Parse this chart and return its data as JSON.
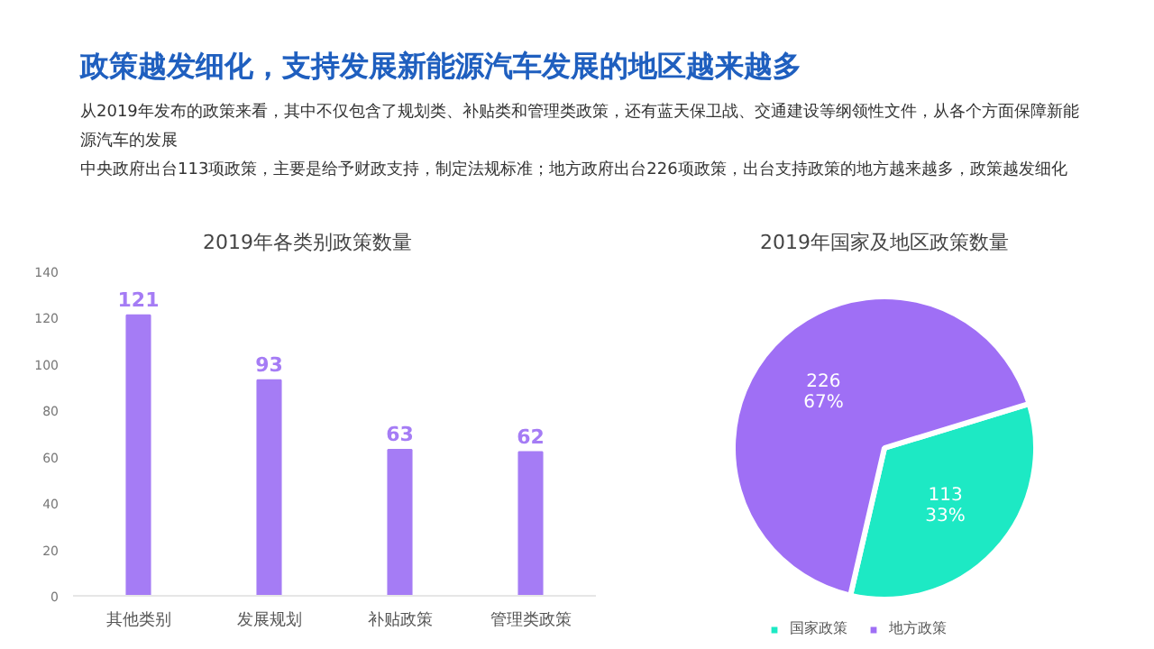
{
  "chart_data": [
    {
      "type": "other",
      "title": "政策越发细化，支持发展新能源汽车发展的地区越来越多",
      "annotations": [
        "从2019年发布的政策来看，其中不仅包含了规划类、补贴类和管理类政策，还有蓝天保卫战、交通建设等纲领性文件，从各个方面保障新能源汽车的发展",
        "中央政府出台113项政策，主要是给予财政支持，制定法规标准；地方政府出台226项政策，出台支持政策的地方越来越多，政策越发细化"
      ]
    },
    {
      "type": "bar",
      "title": "2019年各类别政策数量",
      "categories": [
        "其他类别",
        "发展规划",
        "补贴政策",
        "管理类政策"
      ],
      "values": [
        121,
        93,
        63,
        62
      ],
      "color": "#a57cf5",
      "ylim": [
        0,
        140
      ],
      "yticks": [
        0,
        20,
        40,
        60,
        80,
        100,
        120,
        140
      ],
      "grid": false,
      "data_labels": true
    },
    {
      "type": "pie",
      "title": "2019年国家及地区政策数量",
      "categories": [
        "国家政策",
        "地方政策"
      ],
      "values": [
        113,
        226
      ],
      "colors": [
        "#1de9c4",
        "#9f6ff5"
      ],
      "value_labels": [
        "113\n33%",
        "226\n67%"
      ],
      "legend": "bottom"
    }
  ]
}
